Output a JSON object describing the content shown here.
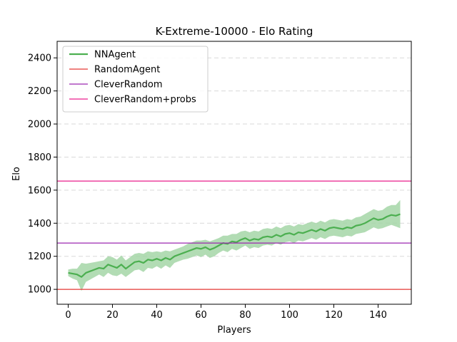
{
  "chart_data": {
    "type": "line",
    "title": "K-Extreme-10000 - Elo Rating",
    "xlabel": "Players",
    "ylabel": "Elo",
    "xlim": [
      -5,
      155
    ],
    "ylim": [
      910,
      2500
    ],
    "xticks": [
      0,
      20,
      40,
      60,
      80,
      100,
      120,
      140
    ],
    "yticks": [
      1000,
      1200,
      1400,
      1600,
      1800,
      2000,
      2200,
      2400
    ],
    "grid": {
      "y": true,
      "style": "dashed"
    },
    "legend": "top-left",
    "series": [
      {
        "name": "NNAgent",
        "color": "#4caf50",
        "band_color": "#a5d6a7",
        "x": [
          0,
          2,
          4,
          6,
          8,
          10,
          12,
          14,
          16,
          18,
          20,
          22,
          24,
          26,
          28,
          30,
          32,
          34,
          36,
          38,
          40,
          42,
          44,
          46,
          48,
          50,
          52,
          54,
          56,
          58,
          60,
          62,
          64,
          66,
          68,
          70,
          72,
          74,
          76,
          78,
          80,
          82,
          84,
          86,
          88,
          90,
          92,
          94,
          96,
          98,
          100,
          102,
          104,
          106,
          108,
          110,
          112,
          114,
          116,
          118,
          120,
          122,
          124,
          126,
          128,
          130,
          132,
          134,
          136,
          138,
          140,
          142,
          144,
          146,
          148,
          150
        ],
        "values": [
          1100,
          1095,
          1090,
          1075,
          1100,
          1110,
          1120,
          1130,
          1125,
          1150,
          1140,
          1130,
          1150,
          1125,
          1145,
          1165,
          1170,
          1160,
          1180,
          1175,
          1185,
          1175,
          1190,
          1180,
          1200,
          1210,
          1220,
          1230,
          1240,
          1250,
          1245,
          1255,
          1240,
          1250,
          1265,
          1280,
          1275,
          1290,
          1285,
          1300,
          1310,
          1295,
          1305,
          1300,
          1315,
          1320,
          1315,
          1330,
          1320,
          1335,
          1340,
          1330,
          1345,
          1340,
          1350,
          1360,
          1350,
          1365,
          1355,
          1370,
          1375,
          1370,
          1365,
          1375,
          1370,
          1385,
          1390,
          1400,
          1415,
          1430,
          1420,
          1425,
          1440,
          1450,
          1445,
          1455
        ],
        "band_low": [
          1080,
          1065,
          1055,
          990,
          1045,
          1060,
          1075,
          1090,
          1075,
          1100,
          1085,
          1080,
          1095,
          1075,
          1095,
          1115,
          1120,
          1105,
          1130,
          1125,
          1140,
          1125,
          1145,
          1130,
          1160,
          1170,
          1180,
          1185,
          1195,
          1205,
          1195,
          1210,
          1190,
          1200,
          1220,
          1235,
          1225,
          1245,
          1235,
          1250,
          1265,
          1245,
          1255,
          1250,
          1265,
          1270,
          1265,
          1280,
          1270,
          1285,
          1290,
          1280,
          1295,
          1290,
          1300,
          1310,
          1300,
          1315,
          1305,
          1320,
          1325,
          1320,
          1315,
          1325,
          1320,
          1335,
          1340,
          1345,
          1360,
          1375,
          1365,
          1370,
          1380,
          1390,
          1380,
          1370
        ],
        "band_high": [
          1120,
          1125,
          1125,
          1160,
          1155,
          1160,
          1165,
          1170,
          1175,
          1200,
          1195,
          1180,
          1205,
          1175,
          1195,
          1215,
          1220,
          1215,
          1230,
          1225,
          1230,
          1225,
          1235,
          1230,
          1240,
          1250,
          1260,
          1275,
          1285,
          1295,
          1295,
          1300,
          1290,
          1300,
          1310,
          1325,
          1325,
          1335,
          1335,
          1350,
          1355,
          1345,
          1355,
          1350,
          1365,
          1370,
          1365,
          1380,
          1370,
          1385,
          1390,
          1380,
          1395,
          1390,
          1400,
          1410,
          1400,
          1415,
          1405,
          1420,
          1425,
          1420,
          1415,
          1425,
          1420,
          1435,
          1440,
          1455,
          1470,
          1485,
          1475,
          1480,
          1500,
          1510,
          1510,
          1540
        ]
      },
      {
        "name": "RandomAgent",
        "color": "#e53935",
        "constant": 1000
      },
      {
        "name": "CleverRandom",
        "color": "#9c27b0",
        "constant": 1280
      },
      {
        "name": "CleverRandom+probs",
        "color": "#e91e8c",
        "constant": 1655
      }
    ]
  }
}
